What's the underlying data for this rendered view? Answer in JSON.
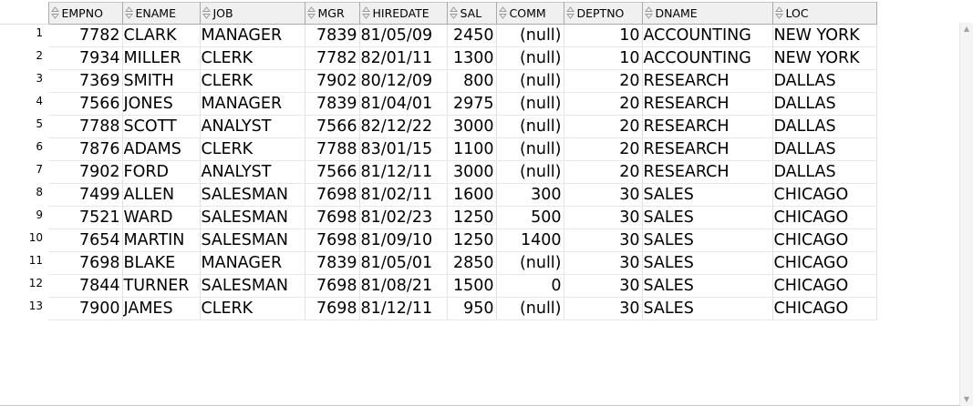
{
  "grid": {
    "columns": [
      {
        "key": "EMPNO",
        "label": "EMPNO",
        "align": "num"
      },
      {
        "key": "ENAME",
        "label": "ENAME",
        "align": "txt"
      },
      {
        "key": "JOB",
        "label": "JOB",
        "align": "txt"
      },
      {
        "key": "MGR",
        "label": "MGR",
        "align": "num"
      },
      {
        "key": "HIREDATE",
        "label": "HIREDATE",
        "align": "txt"
      },
      {
        "key": "SAL",
        "label": "SAL",
        "align": "num"
      },
      {
        "key": "COMM",
        "label": "COMM",
        "align": "num"
      },
      {
        "key": "DEPTNO",
        "label": "DEPTNO",
        "align": "num"
      },
      {
        "key": "DNAME",
        "label": "DNAME",
        "align": "txt"
      },
      {
        "key": "LOC",
        "label": "LOC",
        "align": "txt"
      }
    ],
    "rows": [
      {
        "n": "1",
        "cells": [
          "7782",
          "CLARK",
          "MANAGER",
          "7839",
          "81/05/09",
          "2450",
          "(null)",
          "10",
          "ACCOUNTING",
          "NEW YORK"
        ]
      },
      {
        "n": "2",
        "cells": [
          "7934",
          "MILLER",
          "CLERK",
          "7782",
          "82/01/11",
          "1300",
          "(null)",
          "10",
          "ACCOUNTING",
          "NEW YORK"
        ]
      },
      {
        "n": "3",
        "cells": [
          "7369",
          "SMITH",
          "CLERK",
          "7902",
          "80/12/09",
          "800",
          "(null)",
          "20",
          "RESEARCH",
          "DALLAS"
        ]
      },
      {
        "n": "4",
        "cells": [
          "7566",
          "JONES",
          "MANAGER",
          "7839",
          "81/04/01",
          "2975",
          "(null)",
          "20",
          "RESEARCH",
          "DALLAS"
        ]
      },
      {
        "n": "5",
        "cells": [
          "7788",
          "SCOTT",
          "ANALYST",
          "7566",
          "82/12/22",
          "3000",
          "(null)",
          "20",
          "RESEARCH",
          "DALLAS"
        ]
      },
      {
        "n": "6",
        "cells": [
          "7876",
          "ADAMS",
          "CLERK",
          "7788",
          "83/01/15",
          "1100",
          "(null)",
          "20",
          "RESEARCH",
          "DALLAS"
        ]
      },
      {
        "n": "7",
        "cells": [
          "7902",
          "FORD",
          "ANALYST",
          "7566",
          "81/12/11",
          "3000",
          "(null)",
          "20",
          "RESEARCH",
          "DALLAS"
        ]
      },
      {
        "n": "8",
        "cells": [
          "7499",
          "ALLEN",
          "SALESMAN",
          "7698",
          "81/02/11",
          "1600",
          "300",
          "30",
          "SALES",
          "CHICAGO"
        ]
      },
      {
        "n": "9",
        "cells": [
          "7521",
          "WARD",
          "SALESMAN",
          "7698",
          "81/02/23",
          "1250",
          "500",
          "30",
          "SALES",
          "CHICAGO"
        ]
      },
      {
        "n": "10",
        "cells": [
          "7654",
          "MARTIN",
          "SALESMAN",
          "7698",
          "81/09/10",
          "1250",
          "1400",
          "30",
          "SALES",
          "CHICAGO"
        ]
      },
      {
        "n": "11",
        "cells": [
          "7698",
          "BLAKE",
          "MANAGER",
          "7839",
          "81/05/01",
          "2850",
          "(null)",
          "30",
          "SALES",
          "CHICAGO"
        ]
      },
      {
        "n": "12",
        "cells": [
          "7844",
          "TURNER",
          "SALESMAN",
          "7698",
          "81/08/21",
          "1500",
          "0",
          "30",
          "SALES",
          "CHICAGO"
        ]
      },
      {
        "n": "13",
        "cells": [
          "7900",
          "JAMES",
          "CLERK",
          "7698",
          "81/12/11",
          "950",
          "(null)",
          "30",
          "SALES",
          "CHICAGO"
        ]
      }
    ]
  },
  "icons": {
    "sort": "sort-updown-icon",
    "scroll_up": "scroll-up-arrow-icon",
    "scroll_down": "scroll-down-arrow-icon"
  },
  "colors": {
    "header_bg": "#f0f0f0",
    "header_border": "#a9a9a9",
    "sort_icon": "#9a9a9a",
    "text": "#000000"
  }
}
